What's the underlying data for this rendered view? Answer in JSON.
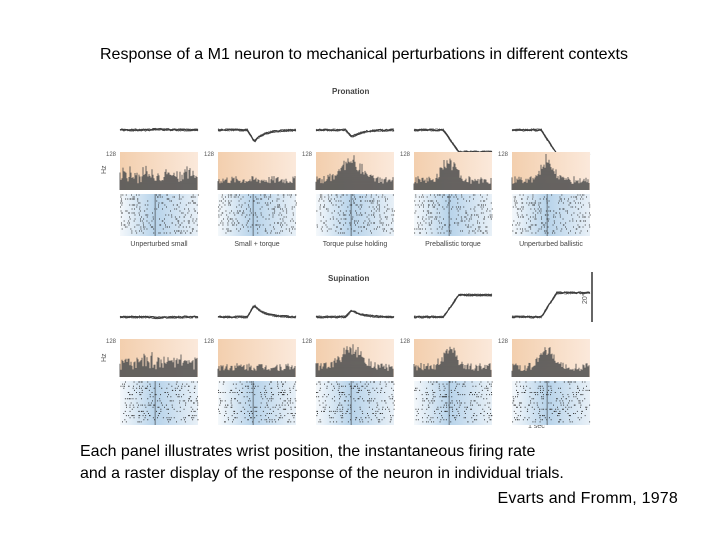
{
  "title": "Response of a M1 neuron to mechanical perturbations in different contexts",
  "figure": {
    "sections": [
      {
        "label": "Pronation",
        "panels": [
          "Unperturbed small",
          "Small + torque",
          "Torque pulse holding",
          "Preballistic torque",
          "Unperturbed ballistic"
        ]
      },
      {
        "label": "Supination",
        "panels": [
          "",
          "",
          "",
          "",
          ""
        ]
      }
    ],
    "scale_value": "128",
    "rate_unit": "Hz",
    "angle_scale": "20°",
    "time_scale": "1 sec",
    "colors": {
      "trace": "#3b3b3b",
      "histogram_bg": "#f3cfae",
      "raster_bg": "#c3d9ec",
      "raster_dots": "#2a2a2a"
    }
  },
  "caption_lines": [
    "Each panel illustrates wrist position, the instantaneous firing rate",
    "and a raster display of the response of the neuron in individual trials."
  ],
  "citation": "Evarts and Fromm, 1978"
}
